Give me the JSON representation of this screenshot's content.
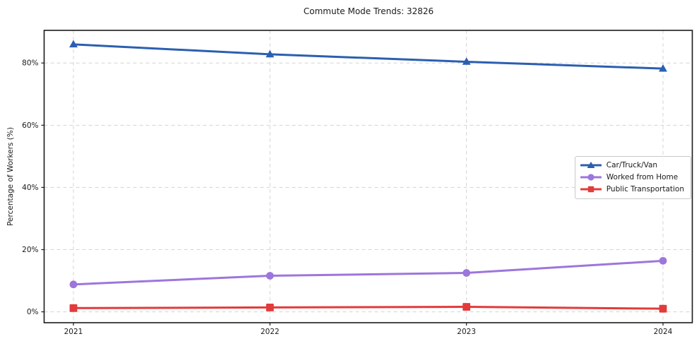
{
  "chart_data": {
    "type": "line",
    "title": "Commute Mode Trends: 32826",
    "xlabel": "",
    "ylabel": "Percentage of Workers (%)",
    "x": [
      "2021",
      "2022",
      "2023",
      "2024"
    ],
    "y_ticks": [
      0,
      20,
      40,
      60,
      80
    ],
    "y_tick_labels": [
      "0%",
      "20%",
      "40%",
      "60%",
      "80%"
    ],
    "ylim": [
      -3.5,
      90.5
    ],
    "grid": true,
    "grid_style": "dashed",
    "legend_position": "center right",
    "series": [
      {
        "name": "Car/Truck/Van",
        "marker": "triangle",
        "color": "#2b5fb0",
        "values": [
          86.0,
          82.8,
          80.4,
          78.2
        ]
      },
      {
        "name": "Worked from Home",
        "marker": "circle",
        "color": "#9d76dc",
        "values": [
          8.8,
          11.6,
          12.5,
          16.4
        ]
      },
      {
        "name": "Public Transportation",
        "marker": "square",
        "color": "#e23b3b",
        "values": [
          1.2,
          1.4,
          1.6,
          1.0
        ]
      }
    ],
    "colors": {
      "grid": "#d4d4d4",
      "spine": "#1a1a1a",
      "tick_text": "#1a1a1a",
      "background": "#ffffff"
    }
  }
}
